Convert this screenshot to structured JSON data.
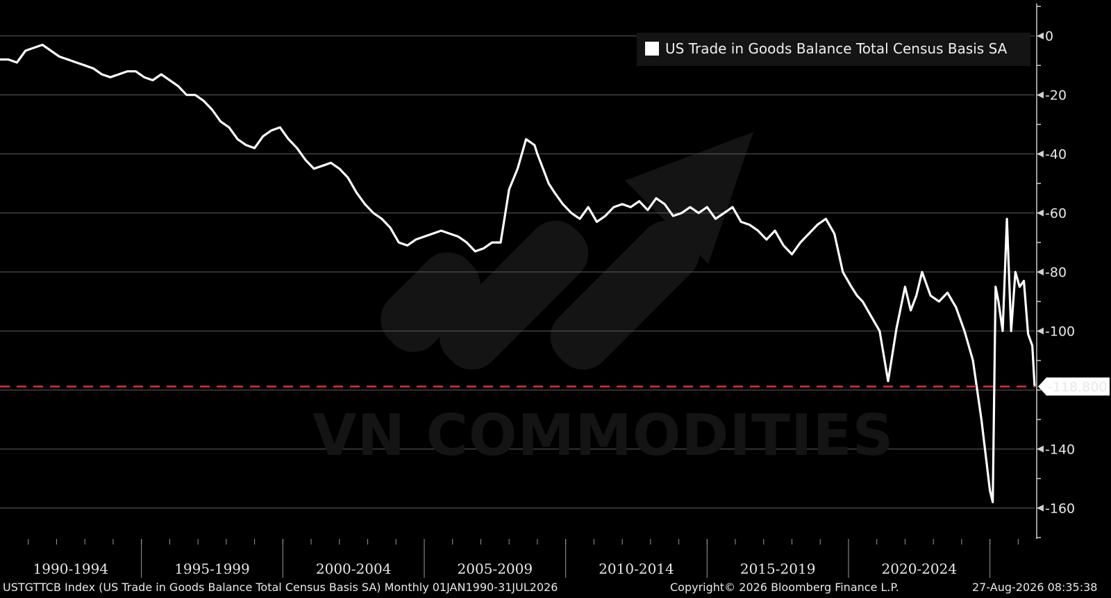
{
  "chart_data": {
    "type": "line",
    "legend_position": "top-right",
    "grid": true,
    "legend": "US Trade in Goods Balance Total Census Basis SA",
    "x_periods": [
      "1990-1994",
      "1995-1999",
      "2000-2004",
      "2005-2009",
      "2010-2014",
      "2015-2019",
      "2020-2024"
    ],
    "x_range": [
      1990.0,
      2026.58
    ],
    "ylim": [
      -170,
      11
    ],
    "y_ticks": [
      0,
      -20,
      -40,
      -60,
      -80,
      -100,
      -140,
      -160
    ],
    "y_tick_labels": [
      "0",
      "-20",
      "-40",
      "-60",
      "-80",
      "-100",
      "-140",
      "-160"
    ],
    "reference_line": {
      "value": -118.8,
      "label": "-118.800",
      "color": "#e0303a"
    },
    "line_color": "#ffffff",
    "series": [
      {
        "x": [
          1990.0,
          1990.3,
          1990.6,
          1990.9,
          1991.2,
          1991.5,
          1991.8,
          1992.1,
          1992.4,
          1992.7,
          1993.0,
          1993.3,
          1993.6,
          1993.9,
          1994.2,
          1994.5,
          1994.8,
          1995.1,
          1995.4,
          1995.7,
          1996.0,
          1996.3,
          1996.6,
          1996.9,
          1997.2,
          1997.5,
          1997.8,
          1998.1,
          1998.4,
          1998.7,
          1999.0,
          1999.3,
          1999.6,
          1999.9,
          2000.2,
          2000.5,
          2000.8,
          2001.1,
          2001.4,
          2001.7,
          2002.0,
          2002.3,
          2002.6,
          2002.9,
          2003.2,
          2003.5,
          2003.8,
          2004.1,
          2004.4,
          2004.7,
          2005.0,
          2005.3,
          2005.6,
          2005.9,
          2006.2,
          2006.5,
          2006.8,
          2007.1,
          2007.4,
          2007.7,
          2008.0,
          2008.3,
          2008.6,
          2008.9,
          2009.0,
          2009.2,
          2009.4,
          2009.6,
          2009.9,
          2010.2,
          2010.5,
          2010.8,
          2011.1,
          2011.4,
          2011.7,
          2012.0,
          2012.3,
          2012.6,
          2012.9,
          2013.2,
          2013.5,
          2013.8,
          2014.1,
          2014.4,
          2014.7,
          2015.0,
          2015.3,
          2015.6,
          2015.9,
          2016.2,
          2016.5,
          2016.8,
          2017.1,
          2017.4,
          2017.7,
          2018.0,
          2018.3,
          2018.6,
          2018.9,
          2019.2,
          2019.5,
          2019.8,
          2020.1,
          2020.3,
          2020.5,
          2020.8,
          2021.1,
          2021.4,
          2021.7,
          2022.0,
          2022.2,
          2022.4,
          2022.6,
          2022.9,
          2023.2,
          2023.5,
          2023.8,
          2024.1,
          2024.4,
          2024.7,
          2025.0,
          2025.1,
          2025.2,
          2025.3,
          2025.45,
          2025.6,
          2025.75,
          2025.9,
          2026.05,
          2026.2,
          2026.35,
          2026.5,
          2026.58
        ],
        "values": [
          -8,
          -8,
          -9,
          -5,
          -4,
          -3,
          -5,
          -7,
          -8,
          -9,
          -10,
          -11,
          -13,
          -14,
          -13,
          -12,
          -12,
          -14,
          -15,
          -13,
          -15,
          -17,
          -20,
          -20,
          -22,
          -25,
          -29,
          -31,
          -35,
          -37,
          -38,
          -34,
          -32,
          -31,
          -35,
          -38,
          -42,
          -45,
          -44,
          -43,
          -45,
          -48,
          -53,
          -57,
          -60,
          -62,
          -65,
          -70,
          -71,
          -69,
          -68,
          -67,
          -66,
          -67,
          -68,
          -70,
          -73,
          -72,
          -70,
          -70,
          -52,
          -45,
          -35,
          -37,
          -40,
          -45,
          -50,
          -53,
          -57,
          -60,
          -62,
          -58,
          -63,
          -61,
          -58,
          -57,
          -58,
          -56,
          -59,
          -55,
          -57,
          -61,
          -60,
          -58,
          -60,
          -58,
          -62,
          -60,
          -58,
          -63,
          -64,
          -66,
          -69,
          -66,
          -71,
          -74,
          -70,
          -67,
          -64,
          -62,
          -67,
          -80,
          -85,
          -88,
          -90,
          -95,
          -100,
          -117,
          -99,
          -85,
          -93,
          -88,
          -80,
          -88,
          -90,
          -87,
          -92,
          -100,
          -110,
          -130,
          -154,
          -158,
          -85,
          -90,
          -100,
          -62,
          -100,
          -80,
          -85,
          -83,
          -101,
          -105,
          -118.8
        ]
      }
    ]
  },
  "footer": {
    "left": "USTGTTCB Index (US Trade in Goods Balance Total Census Basis SA) Monthly 01JAN1990-31JUL2026",
    "center": "Copyright© 2026 Bloomberg Finance L.P.",
    "right": "27-Aug-2026 08:35:38"
  },
  "watermark": {
    "text": "VN COMMODITIES"
  }
}
